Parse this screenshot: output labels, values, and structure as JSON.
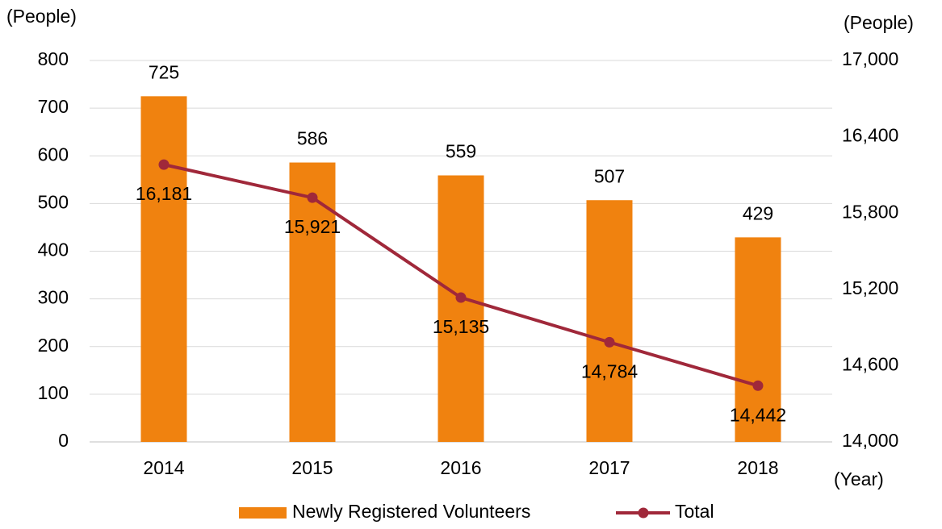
{
  "chart_data": {
    "type": "bar",
    "y_label": "(People)",
    "y2_label": "(People)",
    "x_label": "(Year)",
    "categories": [
      "2014",
      "2015",
      "2016",
      "2017",
      "2018"
    ],
    "series": [
      {
        "name": "Newly Registered Volunteers",
        "type": "bar",
        "color": "#f0820f",
        "values": [
          725,
          586,
          559,
          507,
          429
        ]
      },
      {
        "name": "Total",
        "type": "line",
        "axis": "y2",
        "color": "#a0283a",
        "values": [
          16181,
          15921,
          15135,
          14784,
          14442
        ],
        "value_labels": [
          "16,181",
          "15,921",
          "15,135",
          "14,784",
          "14,442"
        ]
      }
    ],
    "ylim": [
      0,
      800
    ],
    "yticks": [
      0,
      100,
      200,
      300,
      400,
      500,
      600,
      700,
      800
    ],
    "y2lim": [
      14000,
      17000
    ],
    "y2ticks": [
      {
        "value": 14000,
        "label": "14,000"
      },
      {
        "value": 14600,
        "label": "14,600"
      },
      {
        "value": 15200,
        "label": "15,200"
      },
      {
        "value": 15800,
        "label": "15,800"
      },
      {
        "value": 16400,
        "label": "16,400"
      },
      {
        "value": 17000,
        "label": "17,000"
      }
    ],
    "grid": true,
    "legend": "bottom"
  }
}
